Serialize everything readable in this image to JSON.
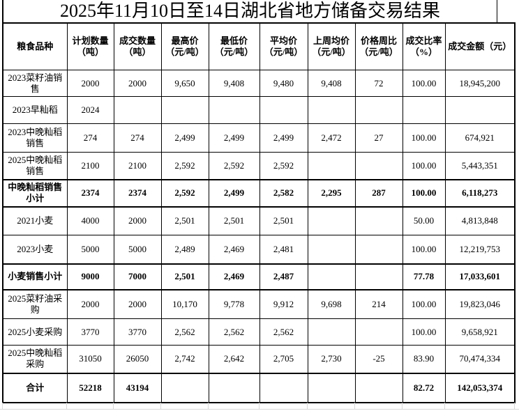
{
  "title": "2025年11月10日至14日湖北省地方储备交易结果",
  "colors": {
    "background": "#ffffff",
    "text": "#000000",
    "table_border": "#000000",
    "faint_gridline": "#d9d9d9"
  },
  "table": {
    "columns": [
      {
        "key": "variety",
        "label": "粮食品种"
      },
      {
        "key": "planned-qty",
        "label": "计划数量\n（吨）"
      },
      {
        "key": "traded-qty",
        "label": "成交数量\n（吨）"
      },
      {
        "key": "high-price",
        "label": "最高价\n（元/吨）"
      },
      {
        "key": "low-price",
        "label": "最低价\n（元/吨）"
      },
      {
        "key": "avg-price",
        "label": "平均价\n（元/吨）"
      },
      {
        "key": "last-week-avg",
        "label": "上周均价\n（元/吨）"
      },
      {
        "key": "week-diff",
        "label": "价格周比\n（元/吨）"
      },
      {
        "key": "traded-ratio",
        "label": "成交比率\n（%）"
      },
      {
        "key": "amount",
        "label": "成交金额（元）"
      }
    ],
    "rows": [
      {
        "label": "2023菜籽油销售",
        "bold": false,
        "values": [
          "2000",
          "2000",
          "9,650",
          "9,408",
          "9,480",
          "9,408",
          "72",
          "100.00",
          "18,945,200"
        ]
      },
      {
        "label": "2023早籼稻",
        "bold": false,
        "values": [
          "2024",
          "",
          "",
          "",
          "",
          "",
          "",
          "",
          ""
        ]
      },
      {
        "label": "2023中晚籼稻销售",
        "bold": false,
        "values": [
          "274",
          "274",
          "2,499",
          "2,499",
          "2,499",
          "2,472",
          "27",
          "100.00",
          "674,921"
        ]
      },
      {
        "label": "2025中晚籼稻销售",
        "bold": false,
        "values": [
          "2100",
          "2100",
          "2,592",
          "2,592",
          "2,592",
          "",
          "",
          "100.00",
          "5,443,351"
        ]
      },
      {
        "label": "中晚籼稻销售小计",
        "bold": true,
        "values": [
          "2374",
          "2374",
          "2,592",
          "2,499",
          "2,582",
          "2,295",
          "287",
          "100.00",
          "6,118,273"
        ]
      },
      {
        "label": "2021小麦",
        "bold": false,
        "values": [
          "4000",
          "2000",
          "2,501",
          "2,501",
          "2,501",
          "",
          "",
          "50.00",
          "4,813,848"
        ]
      },
      {
        "label": "2023小麦",
        "bold": false,
        "values": [
          "5000",
          "5000",
          "2,489",
          "2,469",
          "2,481",
          "",
          "",
          "100.00",
          "12,219,753"
        ]
      },
      {
        "label": "小麦销售小计",
        "bold": true,
        "values": [
          "9000",
          "7000",
          "2,501",
          "2,469",
          "2,487",
          "",
          "",
          "77.78",
          "17,033,601"
        ]
      },
      {
        "label": "2025菜籽油采购",
        "bold": false,
        "values": [
          "2000",
          "2000",
          "10,170",
          "9,778",
          "9,912",
          "9,698",
          "214",
          "100.00",
          "19,823,046"
        ]
      },
      {
        "label": "2025小麦采购",
        "bold": false,
        "values": [
          "3770",
          "3770",
          "2,562",
          "2,562",
          "2,562",
          "",
          "",
          "100.00",
          "9,658,921"
        ]
      },
      {
        "label": "2025中晚籼稻采购",
        "bold": false,
        "values": [
          "31050",
          "26050",
          "2,742",
          "2,642",
          "2,705",
          "2,730",
          "-25",
          "83.90",
          "70,474,334"
        ]
      },
      {
        "label": "合计",
        "bold": true,
        "values": [
          "52218",
          "43194",
          "",
          "",
          "",
          "",
          "",
          "82.72",
          "142,053,374"
        ]
      }
    ]
  }
}
